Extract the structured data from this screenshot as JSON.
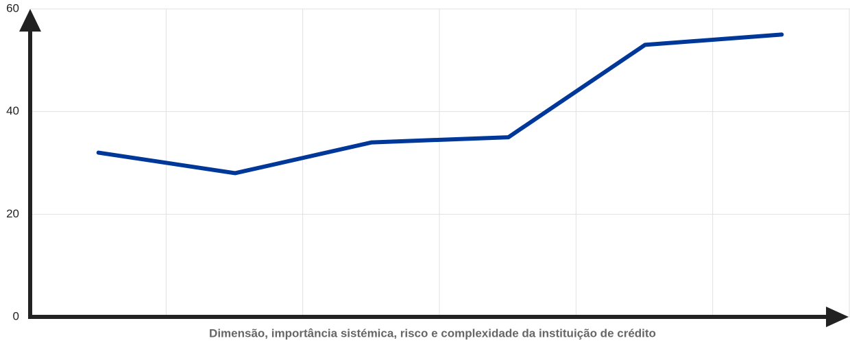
{
  "chart_data": {
    "type": "line",
    "x_label": "Dimensão, importância sistémica, risco e complexidade da instituição de crédito",
    "categories": [
      null,
      null,
      null,
      null,
      null,
      null
    ],
    "series": [
      {
        "color": "#00389a",
        "values": [
          32,
          28,
          34,
          35,
          53,
          55
        ]
      }
    ],
    "ylim": [
      0,
      60
    ],
    "yticks": [
      0,
      20,
      40,
      60
    ],
    "grid": true
  }
}
